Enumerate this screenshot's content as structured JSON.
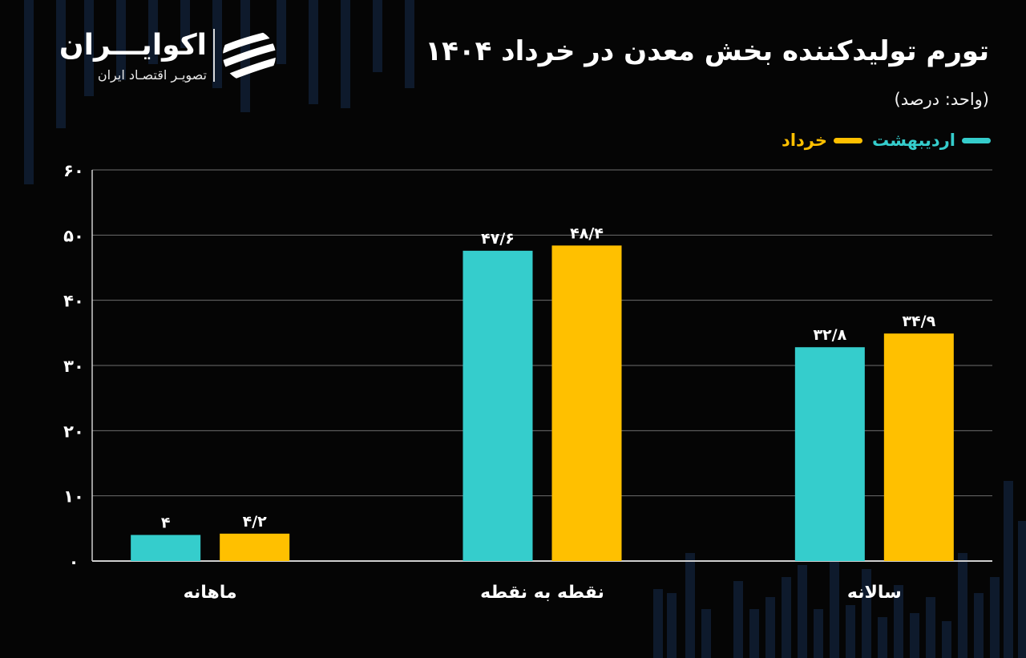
{
  "brand": {
    "name": "اکوایـــران",
    "tagline": "تصویـر اقتصـاد ایران"
  },
  "colors": {
    "background": "#050505",
    "series_1": "#35cdcc",
    "series_2": "#ffc000",
    "grid": "#6e6e6e"
  },
  "chart_data": {
    "type": "bar",
    "title": "تورم تولیدکننده بخش معدن در خرداد ۱۴۰۴",
    "unit_label": "(واحد: درصد)",
    "categories": [
      "ماهانه",
      "نقطه به نقطه",
      "سالانه"
    ],
    "series": [
      {
        "name": "اردیبهشت",
        "color": "#35cdcc",
        "values": [
          4,
          47.6,
          32.8
        ],
        "labels": [
          "۴",
          "۴۷/۶",
          "۳۲/۸"
        ]
      },
      {
        "name": "خرداد",
        "color": "#ffc000",
        "values": [
          4.2,
          48.4,
          34.9
        ],
        "labels": [
          "۴/۲",
          "۴۸/۴",
          "۳۴/۹"
        ]
      }
    ],
    "ylim": [
      0,
      60
    ],
    "yticks": [
      0,
      10,
      20,
      30,
      40,
      50,
      60
    ],
    "ytick_labels": [
      "۰",
      "۱۰",
      "۲۰",
      "۳۰",
      "۴۰",
      "۵۰",
      "۶۰"
    ],
    "grid": true,
    "legend_position": "top-right"
  }
}
